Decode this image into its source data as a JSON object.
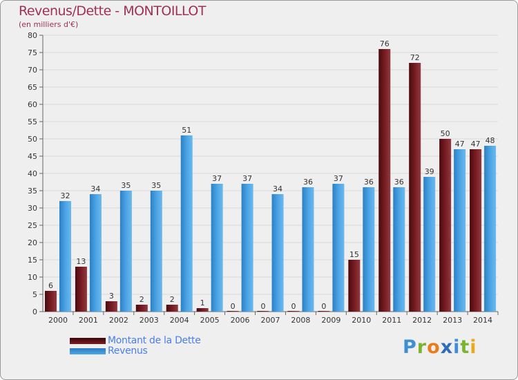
{
  "title": "Revenus/Dette - MONTOILLOT",
  "subtitle": "(en milliers d'€)",
  "logo": {
    "text": "Proxiti",
    "colors": [
      "#3e8ed6",
      "#7ab431",
      "#e87d1e",
      "#2e6db5",
      "#3e8ed6",
      "#7ab431",
      "#e8a91e"
    ]
  },
  "colors": {
    "dette": "#7a1e24",
    "revenus": "#4ea6e6",
    "grid": "#d8d8d8",
    "text": "#333333"
  },
  "chart_data": {
    "type": "bar",
    "title": "Revenus/Dette - MONTOILLOT",
    "ylabel": "",
    "xlabel": "",
    "ylim": [
      0,
      80
    ],
    "yticks": [
      0,
      5,
      10,
      15,
      20,
      25,
      30,
      35,
      40,
      45,
      50,
      55,
      60,
      65,
      70,
      75,
      80
    ],
    "categories": [
      "2000",
      "2001",
      "2002",
      "2003",
      "2004",
      "2005",
      "2006",
      "2007",
      "2008",
      "2009",
      "2010",
      "2011",
      "2012",
      "2013",
      "2014"
    ],
    "series": [
      {
        "name": "Montant de la Dette",
        "values": [
          6,
          13,
          3,
          2,
          2,
          1,
          0,
          0,
          0,
          0,
          15,
          76,
          72,
          50,
          47
        ]
      },
      {
        "name": "Revenus",
        "values": [
          32,
          34,
          35,
          35,
          51,
          37,
          37,
          34,
          36,
          37,
          36,
          36,
          39,
          47,
          48
        ]
      }
    ],
    "legend": "bottom-left",
    "grid": true
  }
}
